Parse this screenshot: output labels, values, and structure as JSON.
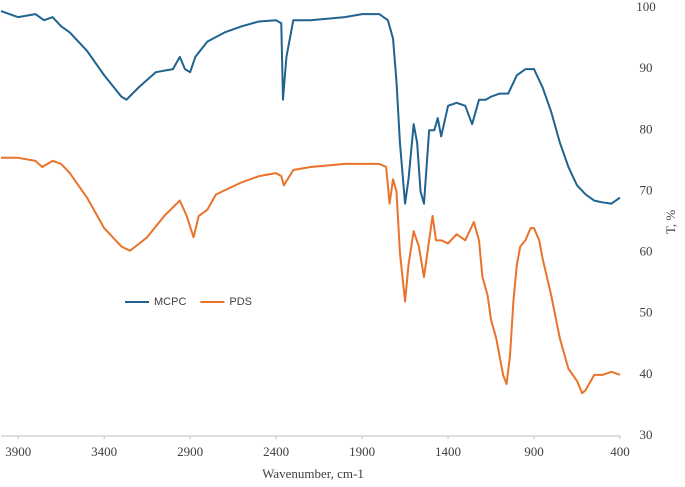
{
  "chart_data": {
    "type": "line",
    "x_label": "Wavenumber, cm-1",
    "y_label": "T, %",
    "xlim": [
      4000,
      400
    ],
    "xticks": [
      3900,
      3400,
      2900,
      2400,
      1900,
      1400,
      900,
      400
    ],
    "ylim": [
      30,
      100
    ],
    "yticks": [
      30,
      40,
      50,
      60,
      70,
      80,
      90,
      100
    ],
    "y_axis_side": "right",
    "grid": false,
    "legend": "left",
    "series": [
      {
        "name": "MCPC",
        "color": "#20638f",
        "x": [
          4000,
          3900,
          3800,
          3750,
          3700,
          3650,
          3600,
          3500,
          3400,
          3300,
          3270,
          3200,
          3100,
          3000,
          2960,
          2930,
          2900,
          2870,
          2800,
          2700,
          2600,
          2500,
          2400,
          2370,
          2360,
          2340,
          2300,
          2200,
          2000,
          1900,
          1800,
          1750,
          1720,
          1700,
          1680,
          1650,
          1630,
          1600,
          1580,
          1560,
          1540,
          1510,
          1480,
          1460,
          1440,
          1400,
          1350,
          1300,
          1260,
          1220,
          1180,
          1150,
          1100,
          1050,
          1000,
          950,
          900,
          850,
          800,
          750,
          700,
          650,
          600,
          550,
          500,
          450,
          400
        ],
        "values": [
          99.5,
          98.5,
          99,
          98,
          98.5,
          97,
          96,
          93,
          89,
          85.5,
          85,
          87,
          89.5,
          90,
          92,
          90,
          89.5,
          92,
          94.5,
          96,
          97,
          97.8,
          98,
          97.5,
          85,
          92,
          98,
          98,
          98.5,
          99,
          99,
          98,
          95,
          88,
          78,
          68,
          72,
          81,
          78,
          70,
          68,
          80,
          80,
          82,
          79,
          84,
          84.5,
          84,
          81,
          85,
          85,
          85.5,
          86,
          86,
          89,
          90,
          90,
          87,
          83,
          78,
          74,
          71,
          69.5,
          68.5,
          68.2,
          68,
          69
        ]
      },
      {
        "name": "PDS",
        "color": "#e9732b",
        "x": [
          4000,
          3900,
          3800,
          3760,
          3700,
          3650,
          3600,
          3500,
          3400,
          3300,
          3250,
          3150,
          3050,
          2960,
          2920,
          2880,
          2850,
          2800,
          2750,
          2600,
          2500,
          2400,
          2370,
          2355,
          2300,
          2200,
          2000,
          1900,
          1800,
          1760,
          1740,
          1720,
          1700,
          1680,
          1650,
          1630,
          1600,
          1570,
          1540,
          1510,
          1490,
          1470,
          1440,
          1400,
          1350,
          1300,
          1250,
          1220,
          1200,
          1170,
          1150,
          1120,
          1080,
          1060,
          1040,
          1020,
          1000,
          980,
          950,
          920,
          900,
          870,
          850,
          800,
          750,
          700,
          650,
          620,
          600,
          550,
          500,
          450,
          400
        ],
        "values": [
          75.5,
          75.5,
          75,
          74,
          75,
          74.5,
          73,
          69,
          64,
          61,
          60.3,
          62.5,
          66,
          68.5,
          66,
          62.5,
          66,
          67,
          69.5,
          71.5,
          72.5,
          73,
          72.5,
          71,
          73.5,
          74,
          74.5,
          74.5,
          74.5,
          74,
          68,
          72,
          70,
          60,
          52,
          58,
          63.5,
          61,
          56,
          62,
          66,
          62,
          62,
          61.5,
          63,
          62,
          65,
          62,
          56,
          53,
          49,
          46,
          40,
          38.5,
          43,
          52,
          58,
          61,
          62,
          64,
          64,
          62,
          59,
          53,
          46,
          41,
          39,
          37,
          37.5,
          40,
          40,
          40.5,
          40
        ]
      }
    ]
  }
}
